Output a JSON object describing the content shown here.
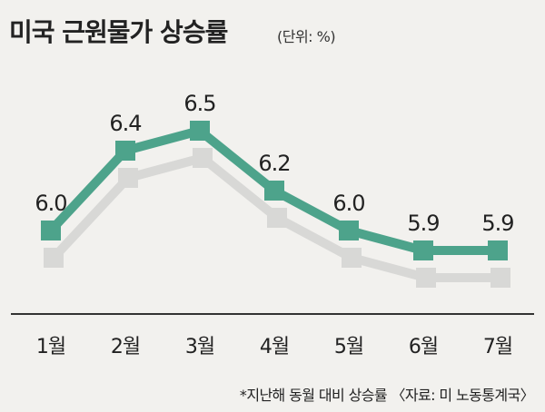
{
  "title": "미국 근원물가 상승률",
  "unit": "(단위: %)",
  "footnote": "*지난해 동월 대비 상승률 〈자료: 미 노동통계국〉",
  "colors": {
    "line": "#4da38b",
    "shadow": "#d8d8d6",
    "axis": "#333333",
    "background": "#f2f1ee"
  },
  "chart_data": {
    "type": "line",
    "title": "미국 근원물가 상승률",
    "unit": "(단위: %)",
    "categories": [
      "1월",
      "2월",
      "3월",
      "4월",
      "5월",
      "6월",
      "7월"
    ],
    "series": [
      {
        "values": [
          6.0,
          6.4,
          6.5,
          6.2,
          6.0,
          5.9,
          5.9
        ]
      }
    ],
    "data_labels": [
      "6.0",
      "6.4",
      "6.5",
      "6.2",
      "6.0",
      "5.9",
      "5.9"
    ],
    "grid": false,
    "legend": "none"
  }
}
